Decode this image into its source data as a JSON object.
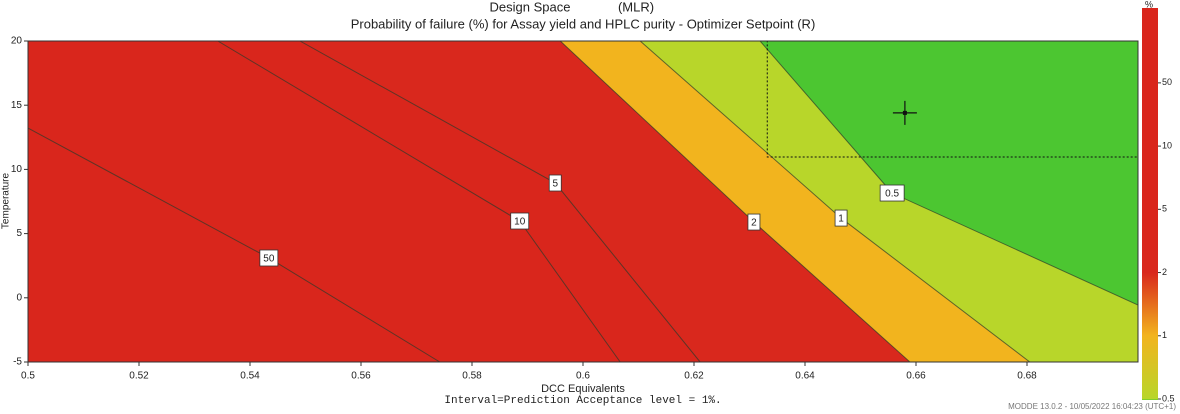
{
  "chart_data": {
    "type": "contour",
    "title": "Design Space",
    "method": "(MLR)",
    "subtitle": "Probability of failure (%) for Assay yield and HPLC purity - Optimizer Setpoint (R)",
    "x_label": "DCC Equivalents",
    "y_label": "Temperature",
    "footnote": "Interval=Prediction Acceptance level = 1%.",
    "software": "MODDE 13.0.2 - 10/05/2022 16:04:23 (UTC+1)",
    "colorbar_label": "%",
    "xlim": [
      0.5,
      0.7
    ],
    "ylim": [
      -5,
      20
    ],
    "xticks": [
      0.5,
      0.52,
      0.54,
      0.56,
      0.58,
      0.6,
      0.62,
      0.64,
      0.66,
      0.68
    ],
    "yticks": [
      -5,
      0,
      5,
      10,
      15,
      20
    ],
    "color": "#4cc631",
    "colorbar_ticks": [
      0.5,
      1,
      2,
      5,
      10,
      50
    ],
    "contours": [
      {
        "level": 0.5,
        "fill": "#b8d62a",
        "x": [
          0.6319,
          0.6557,
          0.7
        ],
        "y": [
          20,
          8.16,
          -0.56
        ]
      },
      {
        "level": 1,
        "fill": "#f2b41e",
        "x": [
          0.6103,
          0.6465,
          0.6805
        ],
        "y": [
          20,
          6.21,
          -5
        ]
      },
      {
        "level": 2,
        "fill": "#d9281d",
        "x": [
          0.5959,
          0.6308,
          0.6589
        ],
        "y": [
          20,
          5.9,
          -5
        ]
      },
      {
        "level": 5,
        "fill": "#d9261c",
        "x": [
          0.549,
          0.595,
          0.6211
        ],
        "y": [
          20,
          8.94,
          -5
        ]
      },
      {
        "level": 10,
        "fill": "#d9261c",
        "x": [
          0.5342,
          0.5886,
          0.6067
        ],
        "y": [
          20,
          5.98,
          -5
        ]
      },
      {
        "level": 50,
        "fill": "#d9261c",
        "x": [
          0.5,
          0.5434,
          0.5742
        ],
        "y": [
          13.22,
          3.1,
          -5
        ]
      }
    ],
    "design_space": {
      "x": [
        0.6332,
        0.7
      ],
      "y": [
        10.97,
        20
      ]
    },
    "setpoint": {
      "x": 0.658,
      "y": 14.4
    }
  }
}
